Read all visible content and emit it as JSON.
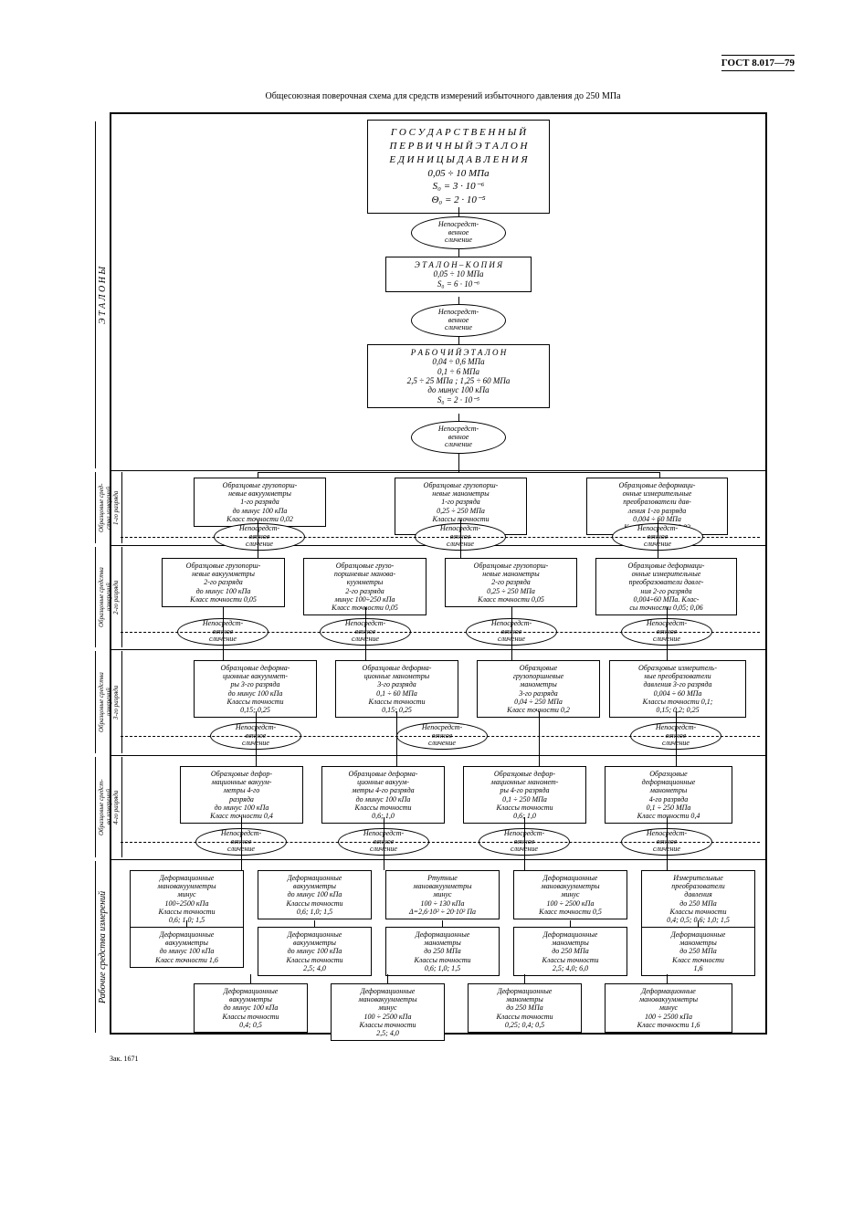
{
  "gost": "ГОСТ 8.017—79",
  "title": "Общесоюзная поверочная схема для средств измерений избыточного давления до 250 МПа",
  "footer": "Зак. 1671",
  "labels": {
    "etalony": "Э Т А Л О Н Ы",
    "r1": "Образцовые сред-\nства измерений\n1-го разряда",
    "r2": "Образцовые средства\nизмерений\n2-го разряда",
    "r3": "Образцовые средства\nизмерений\n3-го разряда",
    "r4": "Образцовые средст-\nва измерений\n4-го разряда",
    "rab": "Рабочие   средства   измерений"
  },
  "npsr": "Непосредст-\nвенное\nсличение",
  "top": {
    "l1": "Г О С У Д А Р С Т В Е Н Н Ы Й",
    "l2": "П Е Р В И Ч Н Ы Й    Э Т А Л О Н",
    "l3": "Е Д И Н И Ц Ы    Д А В Л Е Н И Я",
    "l4": "0,05 ÷ 10 МПа",
    "l5": "S₀ = 3 · 10⁻⁶",
    "l6": "Θ₀ = 2 · 10⁻⁵"
  },
  "copy": {
    "l1": "Э Т А Л О Н – К О П И Я",
    "l2": "0,05 ÷ 10 МПа",
    "l3": "S₀ = 6 · 10⁻⁶"
  },
  "work": {
    "l1": "Р А Б О Ч И Й   Э Т А Л О Н",
    "l2": "0,04 ÷ 0,6 МПа",
    "l3": "0,1 ÷ 6   МПа",
    "l4": "2,5 ÷ 25 МПа ;  1,25 ÷ 60 МПа",
    "l5": "до минус 100 кПа",
    "l6": "S₀ = 2 · 10⁻⁵"
  },
  "r1": {
    "a": "Образцовые грузопорш-\nневые вакуумметры\n1-го разряда\nдо минус 100 кПа\nКласс точности 0,02",
    "b": "Образцовые грузопорш-\nневые манометры\n1-го разряда\n0,25 ÷ 250 МПа\nКлассы точности\n0,01; 0,02",
    "c": "Образцовые деформаци-\nонные измерительные\nпреобразователи дав-\nления 1-го разряда\n0,004 ÷ 60 МПа\nКласс точности 0,02"
  },
  "r2": {
    "a": "Образцовые грузопорш-\nневые вакуумметры\n2-го разряда\nдо минус 100 кПа\nКласс точности 0,05",
    "b": "Образцовые грузо-\nпоршневые манова-\nкуумметры\n2-го разряда\nминус 100÷250 кПа\nКласс точности 0,05",
    "c": "Образцовые грузопорш-\nневые манометры\n2-го разряда\n0,25 ÷ 250 МПа\nКласс точности 0,05",
    "d": "Образцовые деформаци-\nонные измерительные\nпреобразователи давле-\nния 2-го разряда\n0,004÷60 МПа. Клас-\nсы точности 0,05; 0,06"
  },
  "r3": {
    "a": "Образцовые деформа-\nционные вакууммет-\nры 3-го разряда\nдо минус 100 кПа\nКлассы точности\n0,15; 0,25",
    "b": "Образцовые деформа-\nционные манометры\n3-го разряда\n0,1 ÷ 60 МПа\nКлассы точности\n0,15; 0,25",
    "c": "Образцовые\nгрузопоршневые\nманометры\n3-го разряда\n0,04 ÷ 250 МПа\nКласс точности 0,2",
    "d": "Образцовые измеритель-\nные преобразователи\nдавления 3-го разряда\n0,004 ÷ 60 МПа\nКлассы точности 0,1;\n0,15; 0,2; 0,25"
  },
  "r4": {
    "a": "Образцовые дефор-\nмационные вакуум-\nметры 4-го\nразряда\nдо минус 100 кПа\nКласс точности 0,4",
    "b": "Образцовые деформа-\nционные вакуум-\nметры 4-го разряда\nдо минус 100 кПа\nКлассы точности\n0,6; 1,0",
    "c": "Образцовые дефор-\nмационные маномет-\nры 4-го разряда\n0,1 ÷ 250 МПа\nКлассы точности\n0,6; 1,0",
    "d": "Образцовые\nдеформационные\nманометры\n4-го разряда\n0,1 ÷ 250 МПа\nКласс точности 0,4"
  },
  "w1": {
    "a": "Деформационные\nмановакуумметры\nминус\n100÷2500 кПа\nКлассы точности\n0,6; 1,0; 1,5",
    "b": "Деформационные\nвакуумметры\nдо минус 100 кПа\nКлассы точности\n0,6; 1,0; 1,5",
    "c": "Ртутные\nмановакуумметры\nминус\n100 ÷ 130 кПа\nΔ=2,6·10² ÷ 20·10² Па",
    "d": "Деформационные\nмановакуумметры\nминус\n100 ÷ 2500 кПа\nКласс точности 0,5",
    "e": "Измерительные\nпреобразователи\nдавления\nдо 250 МПа\nКлассы точности\n0,4; 0,5; 0,6; 1,0; 1,5"
  },
  "w2": {
    "a": "Деформационные\nвакуумметры\nдо минус 100 кПа\nКласс точности 1,6",
    "b": "Деформационные\nвакуумметры\nдо минус 100 кПа\nКлассы точности\n2,5; 4,0",
    "c": "Деформационные\nманометры\nдо 250 МПа\nКлассы точности\n0,6; 1,0; 1,5",
    "d": "Деформационные\nманометры\nдо 250 МПа\nКлассы точности\n2,5; 4,0; 6,0",
    "e": "Деформационные\nманометры\nдо 250 МПа\nКласс точности\n1,6"
  },
  "w3": {
    "a": "Деформационные\nвакуумметры\nдо минус 100 кПа\nКлассы точности\n0,4; 0,5",
    "b": "Деформационные\nмановакуумметры\nминус\n100 ÷ 2500 кПа\nКлассы точности\n2,5; 4,0",
    "c": "Деформационные\nманометры\nдо 250 МПа\nКлассы точности\n0,25; 0,4; 0,5",
    "d": "Деформационные\nмановакуумметры\nминус\n100 ÷ 2500 кПа\nКласс точности 1,6"
  }
}
